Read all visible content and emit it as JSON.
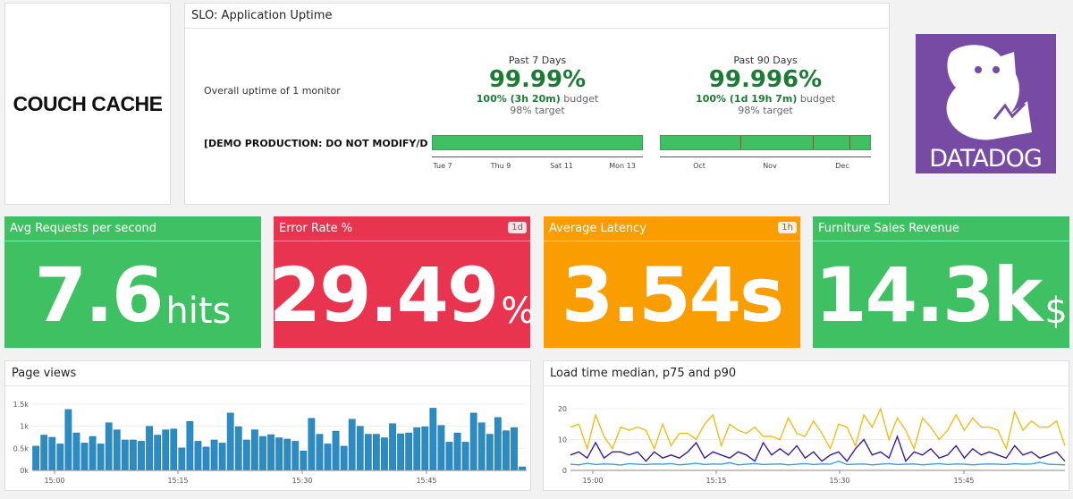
{
  "logo": {
    "text": "COUCH CACHE"
  },
  "slo": {
    "title": "SLO: Application Uptime",
    "description": "Overall uptime of 1 monitor",
    "monitor": "[DEMO PRODUCTION: DO NOT MODIFY/D",
    "week": {
      "period": "Past 7 Days",
      "value": "99.99%",
      "budget": "100% (3h 20m)",
      "budget_suffix": "budget",
      "target": "98% target",
      "ticks": [
        "Tue 7",
        "Thu 9",
        "Sat 11",
        "Mon 13"
      ]
    },
    "quarter": {
      "period": "Past 90 Days",
      "value": "99.996%",
      "budget": "100% (1d 19h 7m)",
      "budget_suffix": "budget",
      "target": "98% target",
      "ticks": [
        "Oct",
        "Nov",
        "Dec"
      ]
    }
  },
  "brand": {
    "text": "DATADOG",
    "color": "#774aa4"
  },
  "widgets": [
    {
      "title": "Avg Requests per second",
      "value": "7.6",
      "unit": "hits",
      "badge": "",
      "color": "#3fc163"
    },
    {
      "title": "Error Rate %",
      "value": "29.49",
      "unit": "%",
      "badge": "1d",
      "color": "#e8344e"
    },
    {
      "title": "Average Latency",
      "value": "3.54s",
      "unit": "",
      "badge": "1h",
      "color": "#f99d00"
    },
    {
      "title": "Furniture Sales Revenue",
      "value": "14.3k",
      "unit": "$",
      "badge": "",
      "color": "#3fc163"
    }
  ],
  "chart_data": [
    {
      "type": "bar",
      "title": "Page views",
      "ylim": [
        0,
        1500
      ],
      "yticks": [
        "0k",
        "0.5k",
        "1k",
        "1.5k"
      ],
      "xticks": [
        "15:00",
        "15:15",
        "15:30",
        "15:45"
      ],
      "color": "#2b8cc4",
      "values": [
        550,
        800,
        750,
        600,
        1380,
        850,
        620,
        770,
        600,
        1080,
        920,
        690,
        690,
        660,
        1000,
        800,
        920,
        940,
        510,
        1110,
        660,
        530,
        690,
        620,
        1300,
        990,
        690,
        920,
        770,
        810,
        740,
        710,
        660,
        440,
        1180,
        820,
        600,
        890,
        550,
        1160,
        1000,
        820,
        820,
        740,
        1060,
        830,
        850,
        970,
        990,
        1410,
        1020,
        640,
        850,
        640,
        1300,
        1080,
        820,
        1200,
        900,
        970,
        80
      ]
    },
    {
      "type": "line",
      "title": "Load time median, p75 and p90",
      "ylim": [
        0,
        22
      ],
      "yticks": [
        "0",
        "10",
        "20"
      ],
      "xticks": [
        "15:00",
        "15:15",
        "15:30",
        "15:45"
      ],
      "series": [
        {
          "color": "#f0bb1e",
          "values": [
            14,
            15,
            7,
            18,
            11,
            7,
            14,
            13,
            14,
            13,
            7,
            15,
            8,
            12,
            12,
            10,
            15,
            18,
            8,
            15,
            13,
            12,
            14,
            11,
            11,
            10,
            17,
            12,
            11,
            16,
            12,
            7,
            15,
            14,
            8,
            18,
            14,
            20,
            10,
            17,
            13,
            7,
            17,
            14,
            10,
            13,
            18,
            13,
            17,
            14,
            14,
            13,
            7,
            19,
            13,
            16,
            14,
            14,
            16,
            8
          ]
        },
        {
          "color": "#3b1d96",
          "values": [
            5,
            6,
            4,
            9,
            4,
            6,
            6,
            5,
            6,
            3,
            6,
            4,
            5,
            4,
            6,
            9,
            4,
            6,
            5,
            4,
            6,
            5,
            3,
            9,
            5,
            7,
            5,
            8,
            4,
            6,
            3,
            5,
            6,
            3,
            7,
            10,
            5,
            6,
            4,
            11,
            3,
            6,
            5,
            7,
            4,
            5,
            8,
            4,
            7,
            5,
            6,
            5,
            4,
            8,
            5,
            6,
            4,
            5,
            6,
            3
          ]
        },
        {
          "color": "#3aa0e6",
          "values": [
            2,
            1.8,
            2.3,
            1.9,
            2.1,
            2,
            1.7,
            2.2,
            2,
            1.9,
            2.1,
            2,
            2.2,
            1.8,
            2,
            2.3,
            1.9,
            2.1,
            2,
            2.5,
            1.8,
            2,
            2.2,
            1.9,
            2,
            2.1,
            1.8,
            2,
            2.2,
            1.9,
            2.1,
            2,
            3,
            1.9,
            2,
            2.1,
            1.8,
            2,
            2.2,
            1.9,
            2,
            2.1,
            1.8,
            2,
            2.2,
            1.9,
            2.1,
            2,
            1.8,
            2,
            2.1,
            2,
            1.9,
            2.2,
            2,
            2.1,
            2.6,
            2,
            1.9,
            1.8
          ]
        }
      ]
    }
  ]
}
